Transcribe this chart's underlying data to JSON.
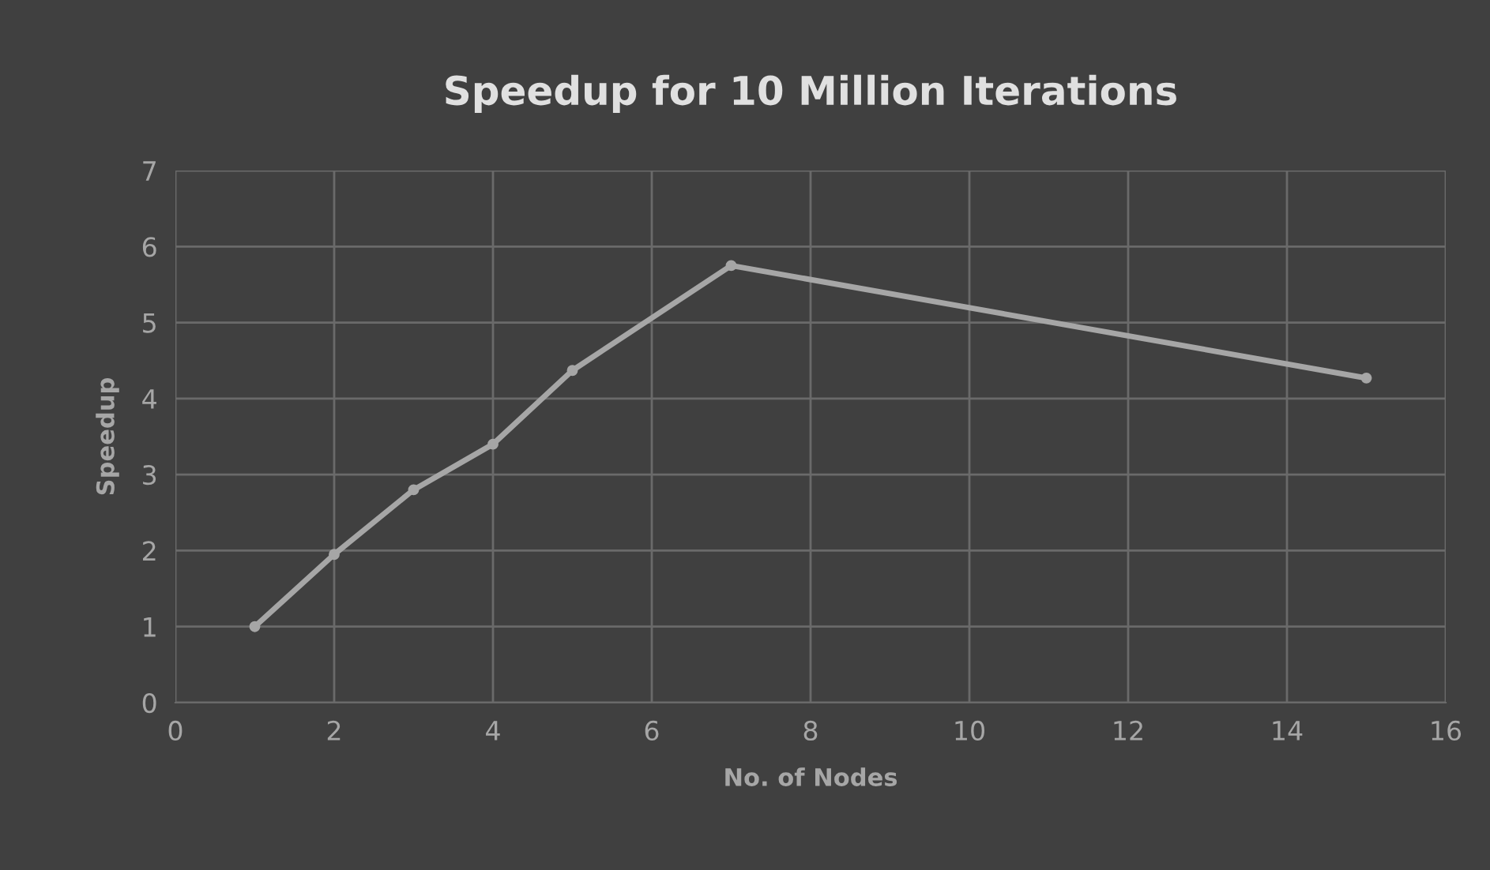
{
  "chart_data": {
    "type": "line",
    "title": "Speedup for 10 Million Iterations",
    "xlabel": "No. of Nodes",
    "ylabel": "Speedup",
    "x": [
      1,
      2,
      3,
      4,
      5,
      7,
      15
    ],
    "series": [
      {
        "color": "#a6a6a6",
        "values": [
          1.0,
          1.95,
          2.8,
          3.4,
          4.37,
          5.75,
          4.27
        ]
      }
    ],
    "xlim": [
      0,
      16
    ],
    "xticks": [
      0,
      2,
      4,
      6,
      8,
      10,
      12,
      14,
      16
    ],
    "ylim": [
      0,
      7
    ],
    "yticks": [
      0,
      1,
      2,
      3,
      4,
      5,
      6,
      7
    ],
    "grid": true,
    "marker": "circle",
    "line_style": "solid",
    "legend": false
  }
}
